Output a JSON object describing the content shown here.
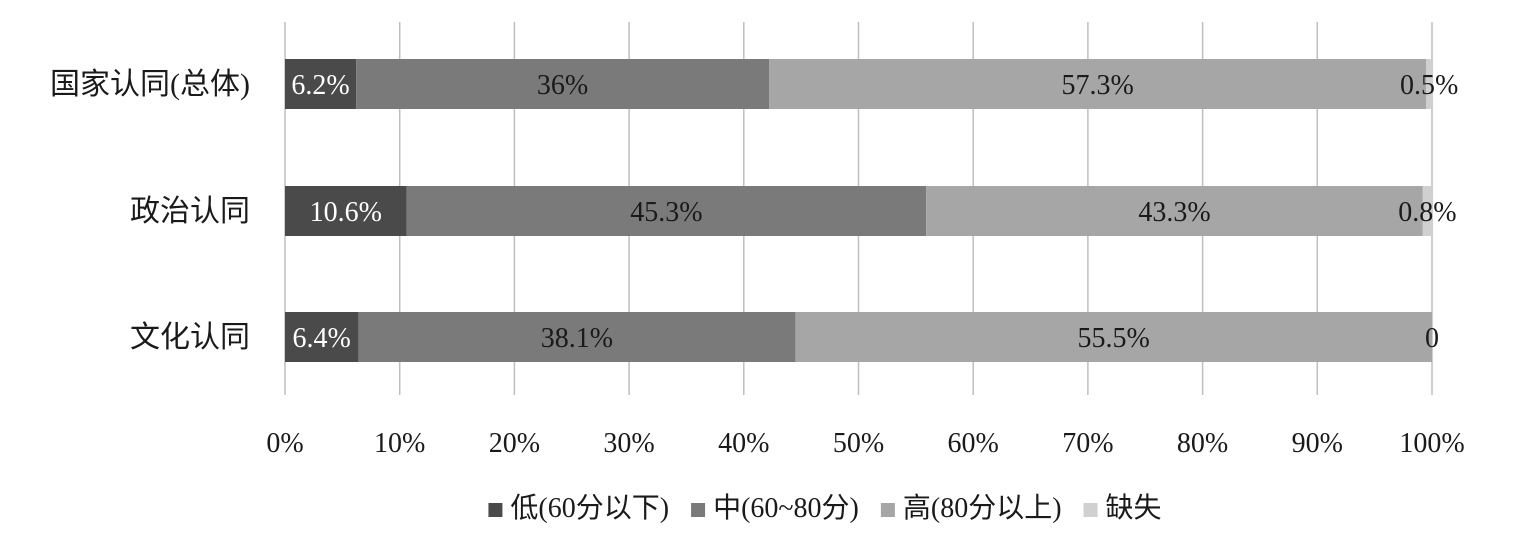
{
  "chart_data": {
    "type": "bar",
    "orientation": "horizontal",
    "stacked": "percent",
    "categories": [
      "国家认同(总体)",
      "政治认同",
      "文化认同"
    ],
    "series": [
      {
        "name": "低(60分以下)",
        "values": [
          6.2,
          10.6,
          6.4
        ],
        "labels": [
          "6.2%",
          "10.6%",
          "6.4%"
        ],
        "color": "#4a4a4a"
      },
      {
        "name": "中(60~80分)",
        "values": [
          36,
          45.3,
          38.1
        ],
        "labels": [
          "36%",
          "45.3%",
          "38.1%"
        ],
        "color": "#7a7a7a"
      },
      {
        "name": "高(80分以上)",
        "values": [
          57.3,
          43.3,
          55.5
        ],
        "labels": [
          "57.3%",
          "43.3%",
          "55.5%"
        ],
        "color": "#a6a6a6"
      },
      {
        "name": "缺失",
        "values": [
          0.5,
          0.8,
          0
        ],
        "labels": [
          "0.5%",
          "0.8%",
          "0"
        ],
        "color": "#d0d0d0"
      }
    ],
    "xticks": [
      "0%",
      "10%",
      "20%",
      "30%",
      "40%",
      "50%",
      "60%",
      "70%",
      "80%",
      "90%",
      "100%"
    ],
    "xlim": [
      0,
      100
    ],
    "grid": true,
    "legend": "bottom"
  }
}
